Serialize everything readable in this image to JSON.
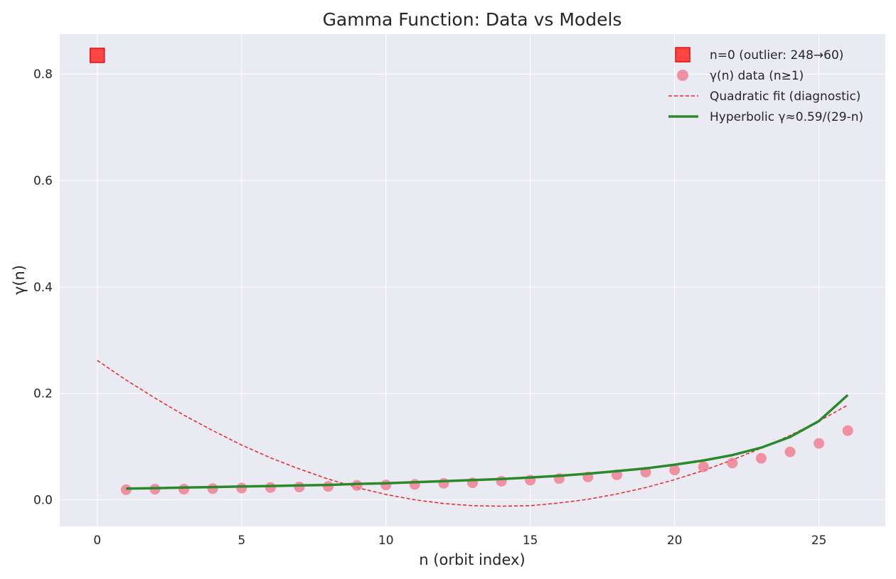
{
  "chart_data": {
    "type": "scatter",
    "title": "Gamma Function: Data vs Models",
    "xlabel": "n (orbit index)",
    "ylabel": "γ(n)",
    "xlim": [
      -1.3,
      27.3
    ],
    "ylim": [
      -0.05,
      0.875
    ],
    "xticks": [
      0,
      5,
      10,
      15,
      20,
      25
    ],
    "yticks": [
      0.0,
      0.2,
      0.4,
      0.6,
      0.8
    ],
    "xtick_labels": [
      "0",
      "5",
      "10",
      "15",
      "20",
      "25"
    ],
    "ytick_labels": [
      "0.0",
      "0.2",
      "0.4",
      "0.6",
      "0.8"
    ],
    "grid": true,
    "legend_position": "top-right",
    "series": [
      {
        "name": "n=0 (outlier: 248→60)",
        "kind": "square-marker",
        "color": "#ff2020",
        "x": [
          0
        ],
        "y": [
          0.835
        ]
      },
      {
        "name": "γ(n) data (n≥1)",
        "kind": "circle-marker",
        "color": "#f07a8c",
        "x": [
          1,
          2,
          3,
          4,
          5,
          6,
          7,
          8,
          9,
          10,
          11,
          12,
          13,
          14,
          15,
          16,
          17,
          18,
          19,
          20,
          21,
          22,
          23,
          24,
          25,
          26
        ],
        "y": [
          0.019,
          0.02,
          0.02,
          0.021,
          0.022,
          0.023,
          0.024,
          0.025,
          0.027,
          0.028,
          0.029,
          0.031,
          0.032,
          0.035,
          0.037,
          0.04,
          0.043,
          0.047,
          0.052,
          0.056,
          0.062,
          0.069,
          0.078,
          0.09,
          0.106,
          0.13
        ]
      },
      {
        "name": "Quadratic fit (diagnostic)",
        "kind": "dashed-line",
        "color": "#ee2222",
        "x": [
          0,
          1,
          2,
          3,
          4,
          5,
          6,
          7,
          8,
          9,
          10,
          11,
          12,
          13,
          14,
          15,
          16,
          17,
          18,
          19,
          20,
          21,
          22,
          23,
          24,
          25,
          26
        ],
        "y": [
          0.262,
          0.225,
          0.191,
          0.159,
          0.13,
          0.103,
          0.079,
          0.058,
          0.039,
          0.023,
          0.01,
          0.0,
          -0.007,
          -0.011,
          -0.012,
          -0.011,
          -0.006,
          0.001,
          0.011,
          0.023,
          0.038,
          0.055,
          0.075,
          0.097,
          0.121,
          0.148,
          0.178
        ]
      },
      {
        "name": "Hyperbolic γ≈0.59/(29-n)",
        "kind": "solid-line",
        "color": "#2a8a2a",
        "x": [
          1,
          2,
          3,
          4,
          5,
          6,
          7,
          8,
          9,
          10,
          11,
          12,
          13,
          14,
          15,
          16,
          17,
          18,
          19,
          20,
          21,
          22,
          23,
          24,
          25,
          26
        ],
        "y": [
          0.021,
          0.022,
          0.023,
          0.024,
          0.025,
          0.026,
          0.027,
          0.028,
          0.03,
          0.031,
          0.033,
          0.035,
          0.037,
          0.039,
          0.042,
          0.045,
          0.049,
          0.054,
          0.059,
          0.066,
          0.074,
          0.084,
          0.098,
          0.118,
          0.148,
          0.197
        ]
      }
    ]
  }
}
